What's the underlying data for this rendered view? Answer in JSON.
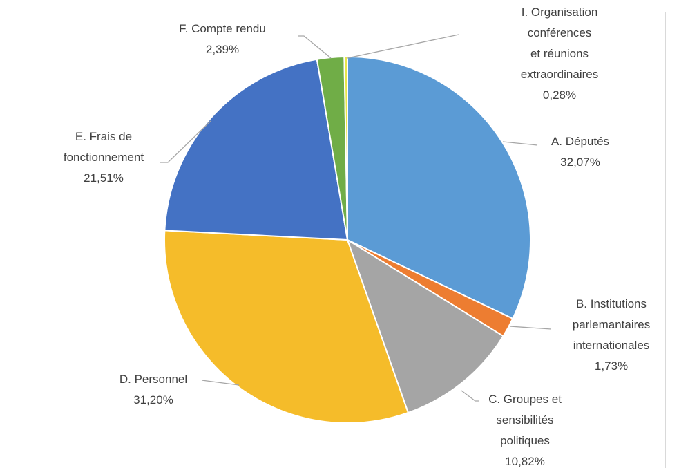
{
  "chart_data": {
    "type": "pie",
    "categories": [
      "A. Députés",
      "B. Institutions\nparlemantaires\ninternationales",
      "C. Groupes et\nsensibilités\npolitiques",
      "D. Personnel",
      "E. Frais de\nfonctionnement",
      "F. Compte rendu",
      "I. Organisation conférences\net réunions extraordinaires"
    ],
    "values": [
      32.07,
      1.73,
      10.82,
      31.2,
      21.51,
      2.39,
      0.28
    ],
    "value_labels": [
      "32,07%",
      "1,73%",
      "10,82%",
      "31,20%",
      "21,51%",
      "2,39%",
      "0,28%"
    ],
    "colors": [
      "#5b9bd5",
      "#ed7d31",
      "#a5a5a5",
      "#f5bc2a",
      "#4472c4",
      "#70ad47",
      "#e6e64a"
    ]
  }
}
